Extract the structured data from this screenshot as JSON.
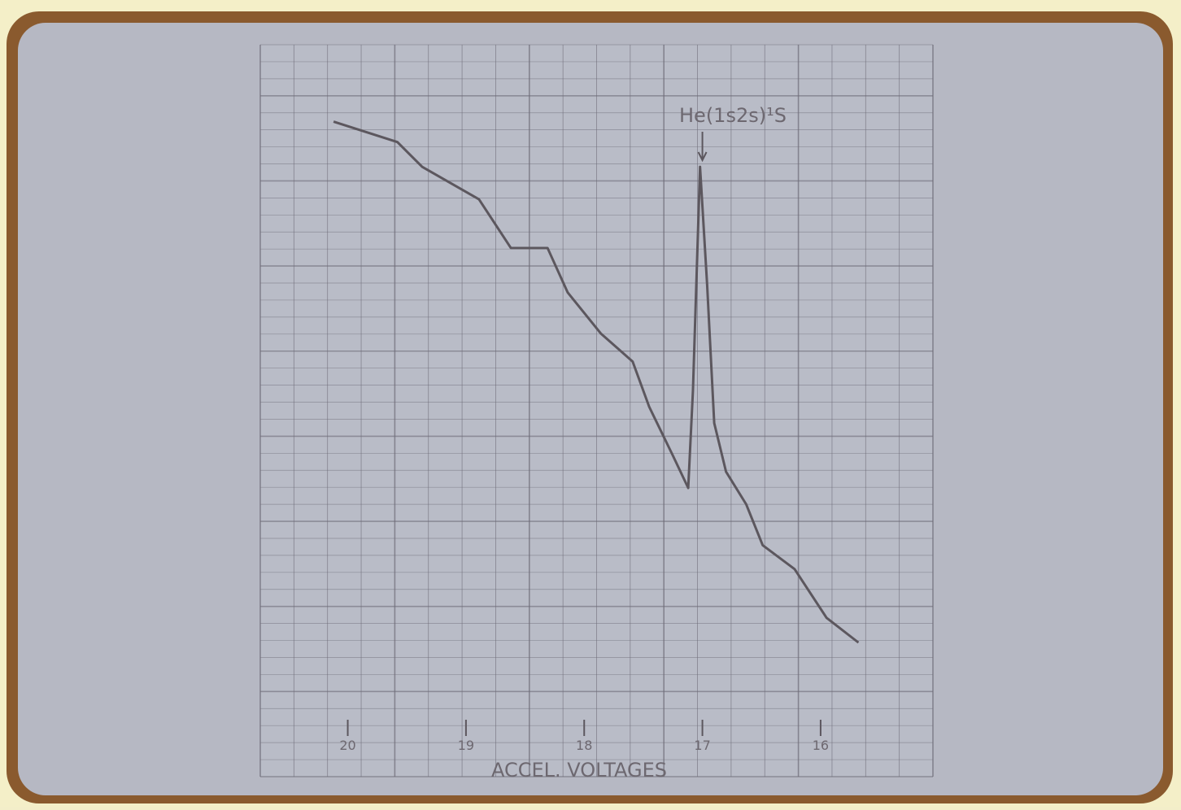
{
  "chart_data": {
    "type": "line",
    "annotation": "He(1s2s)¹S",
    "annotation_x": 17,
    "xlabel": "ACCEL. VOLTAGES",
    "xlim": [
      20.74,
      15.05
    ],
    "xticks": [
      20,
      19,
      18,
      17,
      16
    ],
    "ylim": [
      0,
      8.57
    ],
    "color": "#5c575e",
    "x": [
      20.12,
      19.58,
      19.37,
      18.89,
      18.62,
      18.31,
      18.14,
      17.86,
      17.59,
      17.45,
      17.25,
      17.12,
      17.08,
      17.02,
      16.96,
      16.9,
      16.8,
      16.63,
      16.49,
      16.22,
      15.95,
      15.68
    ],
    "values": [
      7.67,
      7.43,
      7.14,
      6.76,
      6.19,
      6.19,
      5.67,
      5.19,
      4.86,
      4.33,
      3.76,
      3.38,
      4.52,
      7.14,
      5.76,
      4.14,
      3.57,
      3.19,
      2.71,
      2.43,
      1.86,
      1.57
    ]
  }
}
